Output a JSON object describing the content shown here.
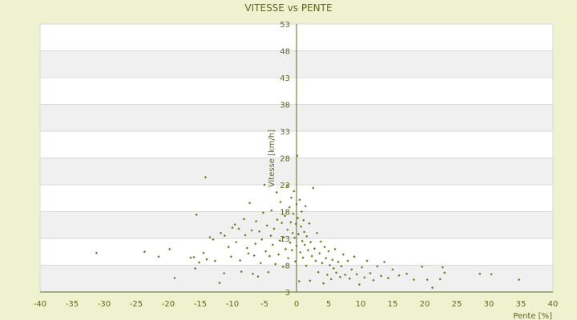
{
  "colors": {
    "background": "#eef2cf",
    "plot_band_light": "#ffffff",
    "plot_band_dark": "#f0f0f0",
    "grid": "#d9d9d9",
    "axis": "#5a6a1e",
    "text": "#5a6a1e",
    "point": "#6b7a1c"
  },
  "chart_data": {
    "type": "scatter",
    "title": "VITESSE vs PENTE",
    "xlabel": "Pente [%]",
    "ylabel": "Vitesse [km/h]",
    "xlim": [
      -40,
      40
    ],
    "ylim": [
      3,
      53
    ],
    "xticks": [
      -40,
      -35,
      -30,
      -25,
      -20,
      -15,
      -10,
      -5,
      0,
      5,
      10,
      15,
      20,
      25,
      30,
      35,
      40
    ],
    "yticks": [
      3,
      8,
      13,
      18,
      23,
      28,
      33,
      38,
      43,
      48,
      53
    ],
    "grid": true,
    "legend": "none",
    "points": [
      [
        -31.2,
        10.3
      ],
      [
        -23.7,
        10.5
      ],
      [
        -21.5,
        9.6
      ],
      [
        -19.8,
        11.0
      ],
      [
        -19.0,
        5.6
      ],
      [
        -16.5,
        9.4
      ],
      [
        -16.0,
        9.5
      ],
      [
        -15.6,
        17.4
      ],
      [
        -15.8,
        7.4
      ],
      [
        -15.2,
        8.5
      ],
      [
        -14.5,
        10.3
      ],
      [
        -14.0,
        9.1
      ],
      [
        -14.2,
        24.4
      ],
      [
        -13.5,
        13.2
      ],
      [
        -13.0,
        12.8
      ],
      [
        -12.7,
        8.8
      ],
      [
        -12.0,
        4.7
      ],
      [
        -11.8,
        14.0
      ],
      [
        -11.3,
        6.5
      ],
      [
        -11.2,
        13.5
      ],
      [
        -10.6,
        11.4
      ],
      [
        -10.0,
        15.0
      ],
      [
        -10.2,
        9.6
      ],
      [
        -9.6,
        15.6
      ],
      [
        -9.4,
        12.3
      ],
      [
        -9.0,
        14.8
      ],
      [
        -8.8,
        8.9
      ],
      [
        -8.6,
        6.8
      ],
      [
        -8.2,
        16.6
      ],
      [
        -8.0,
        13.6
      ],
      [
        -7.7,
        11.2
      ],
      [
        -7.5,
        10.2
      ],
      [
        -7.3,
        19.6
      ],
      [
        -7.0,
        14.5
      ],
      [
        -6.8,
        6.4
      ],
      [
        -6.6,
        9.8
      ],
      [
        -6.4,
        12.0
      ],
      [
        -6.3,
        16.2
      ],
      [
        -6.0,
        5.9
      ],
      [
        -5.8,
        14.3
      ],
      [
        -5.6,
        8.4
      ],
      [
        -5.4,
        12.8
      ],
      [
        -5.2,
        17.8
      ],
      [
        -5.0,
        23.0
      ],
      [
        -4.8,
        10.6
      ],
      [
        -4.6,
        15.4
      ],
      [
        -4.4,
        6.7
      ],
      [
        -4.2,
        9.7
      ],
      [
        -4.0,
        13.5
      ],
      [
        -3.9,
        18.2
      ],
      [
        -3.7,
        11.8
      ],
      [
        -3.5,
        14.8
      ],
      [
        -3.3,
        8.2
      ],
      [
        -3.1,
        21.6
      ],
      [
        -3.0,
        16.5
      ],
      [
        -2.8,
        10.0
      ],
      [
        -2.6,
        12.6
      ],
      [
        -2.5,
        19.8
      ],
      [
        -2.3,
        15.9
      ],
      [
        -2.1,
        7.7
      ],
      [
        -2.0,
        13.2
      ],
      [
        -1.8,
        17.2
      ],
      [
        -1.7,
        11.0
      ],
      [
        -1.5,
        22.8
      ],
      [
        -1.4,
        14.6
      ],
      [
        -1.3,
        9.3
      ],
      [
        -1.1,
        18.8
      ],
      [
        -1.0,
        12.2
      ],
      [
        -0.9,
        16.0
      ],
      [
        -0.8,
        20.6
      ],
      [
        -0.7,
        10.8
      ],
      [
        -0.6,
        14.0
      ],
      [
        -0.5,
        17.6
      ],
      [
        -0.4,
        21.8
      ],
      [
        -0.3,
        13.1
      ],
      [
        -0.2,
        8.7
      ],
      [
        -0.1,
        15.7
      ],
      [
        0.0,
        19.4
      ],
      [
        0.0,
        11.6
      ],
      [
        0.1,
        28.4
      ],
      [
        0.2,
        16.8
      ],
      [
        0.3,
        13.8
      ],
      [
        0.4,
        5.0
      ],
      [
        0.5,
        20.2
      ],
      [
        0.6,
        10.4
      ],
      [
        0.7,
        15.2
      ],
      [
        0.8,
        18.0
      ],
      [
        0.9,
        12.5
      ],
      [
        1.0,
        9.4
      ],
      [
        1.1,
        16.4
      ],
      [
        1.2,
        14.2
      ],
      [
        1.3,
        11.8
      ],
      [
        1.4,
        19.0
      ],
      [
        1.5,
        7.9
      ],
      [
        1.6,
        13.4
      ],
      [
        1.8,
        10.8
      ],
      [
        2.0,
        15.8
      ],
      [
        2.1,
        5.1
      ],
      [
        2.2,
        12.3
      ],
      [
        2.4,
        9.7
      ],
      [
        2.6,
        22.4
      ],
      [
        2.8,
        11.1
      ],
      [
        3.0,
        8.8
      ],
      [
        3.2,
        14.0
      ],
      [
        3.4,
        6.7
      ],
      [
        3.6,
        10.2
      ],
      [
        3.8,
        12.4
      ],
      [
        4.0,
        8.4
      ],
      [
        4.2,
        4.6
      ],
      [
        4.4,
        11.4
      ],
      [
        4.6,
        9.3
      ],
      [
        4.8,
        6.2
      ],
      [
        5.0,
        10.6
      ],
      [
        5.2,
        8.0
      ],
      [
        5.4,
        5.4
      ],
      [
        5.6,
        9.0
      ],
      [
        5.8,
        7.4
      ],
      [
        6.0,
        11.0
      ],
      [
        6.2,
        6.6
      ],
      [
        6.5,
        8.6
      ],
      [
        6.8,
        5.8
      ],
      [
        7.0,
        7.8
      ],
      [
        7.3,
        10.0
      ],
      [
        7.6,
        6.2
      ],
      [
        8.0,
        8.8
      ],
      [
        8.3,
        5.5
      ],
      [
        8.6,
        7.2
      ],
      [
        9.0,
        9.6
      ],
      [
        9.4,
        6.3
      ],
      [
        9.8,
        4.4
      ],
      [
        10.2,
        7.6
      ],
      [
        10.6,
        5.7
      ],
      [
        11.0,
        8.8
      ],
      [
        11.5,
        6.5
      ],
      [
        12.0,
        5.2
      ],
      [
        12.6,
        7.8
      ],
      [
        13.2,
        6.0
      ],
      [
        13.7,
        8.6
      ],
      [
        14.3,
        5.6
      ],
      [
        15.0,
        7.2
      ],
      [
        16.0,
        6.1
      ],
      [
        17.2,
        6.4
      ],
      [
        18.3,
        5.3
      ],
      [
        19.6,
        7.7
      ],
      [
        20.4,
        5.3
      ],
      [
        21.2,
        3.8
      ],
      [
        22.4,
        5.4
      ],
      [
        22.8,
        7.6
      ],
      [
        23.1,
        6.6
      ],
      [
        28.6,
        6.4
      ],
      [
        30.4,
        6.3
      ],
      [
        34.7,
        5.3
      ]
    ]
  }
}
